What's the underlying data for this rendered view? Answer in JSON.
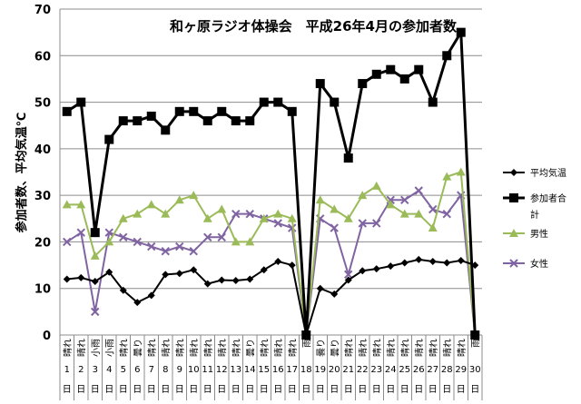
{
  "chart_data": {
    "type": "line",
    "title": "和ヶ原ラジオ体操会　平成26年4月の参加者数",
    "ylabel": "参加者数、平均気温℃",
    "xlabel": "",
    "ylim": [
      0,
      70
    ],
    "yticks": [
      0,
      10,
      20,
      30,
      40,
      50,
      60,
      70
    ],
    "grid": true,
    "legend_position": "right",
    "categories": [
      "1",
      "2",
      "3",
      "4",
      "5",
      "6",
      "7",
      "8",
      "9",
      "10",
      "11",
      "12",
      "13",
      "14",
      "15",
      "16",
      "17",
      "18",
      "19",
      "20",
      "21",
      "22",
      "23",
      "24",
      "25",
      "26",
      "27",
      "28",
      "29",
      "30"
    ],
    "day_suffix": "日",
    "weather": [
      "晴れ",
      "晴れ",
      "小雨",
      "小雨",
      "晴れ",
      "曇り",
      "晴れ",
      "晴れ",
      "晴れ",
      "晴れ",
      "晴れ",
      "晴れ",
      "晴れ",
      "曇り",
      "晴れ",
      "晴れ",
      "晴れ",
      "雨",
      "曇り",
      "曇り",
      "晴れ",
      "晴れ",
      "晴れ",
      "晴れ",
      "晴れ",
      "晴れ",
      "晴れ",
      "晴れ",
      "晴れ",
      "雨"
    ],
    "series": [
      {
        "name": "平均気温",
        "color": "#000000",
        "marker": "diamond",
        "values": [
          12,
          12.3,
          11.5,
          13.5,
          9.6,
          7,
          8.5,
          13,
          13.2,
          14,
          11,
          11.8,
          11.7,
          12,
          14,
          15.8,
          15,
          0,
          10,
          8.8,
          11.8,
          13.8,
          14.2,
          14.8,
          15.5,
          16.2,
          15.8,
          15.5,
          16,
          15
        ]
      },
      {
        "name": "参加者合計",
        "color": "#000000",
        "marker": "square",
        "values": [
          48,
          50,
          22,
          42,
          46,
          46,
          47,
          44,
          48,
          48,
          46,
          48,
          46,
          46,
          50,
          50,
          48,
          0,
          54,
          50,
          38,
          54,
          56,
          57,
          55,
          57,
          50,
          60,
          65,
          0
        ]
      },
      {
        "name": "男性",
        "color": "#9bbb59",
        "marker": "triangle",
        "values": [
          28,
          28,
          17,
          20,
          25,
          26,
          28,
          26,
          29,
          30,
          25,
          27,
          20,
          20,
          25,
          26,
          25,
          0,
          29,
          27,
          25,
          30,
          32,
          28,
          26,
          26,
          23,
          34,
          35,
          0
        ]
      },
      {
        "name": "女性",
        "color": "#8064a2",
        "marker": "x",
        "values": [
          20,
          22,
          5,
          22,
          21,
          20,
          19,
          18,
          19,
          18,
          21,
          21,
          26,
          26,
          25,
          24,
          23,
          0,
          25,
          23,
          13,
          24,
          24,
          29,
          29,
          31,
          27,
          26,
          30,
          0
        ]
      }
    ]
  }
}
